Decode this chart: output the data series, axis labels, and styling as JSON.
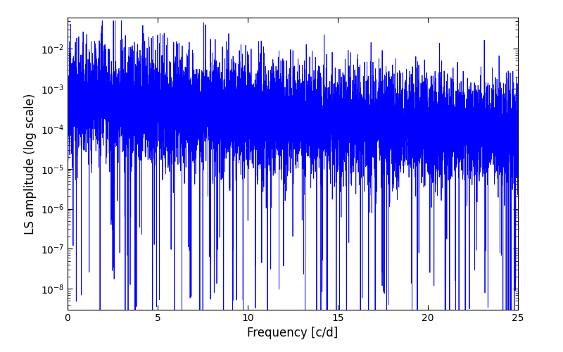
{
  "xlabel": "Frequency [c/d]",
  "ylabel": "LS amplitude (log scale)",
  "line_color": "#0000ff",
  "line_width": 0.6,
  "xlim": [
    0,
    25
  ],
  "ylim_low": 3e-09,
  "ylim_high": 0.06,
  "x_ticks": [
    0,
    5,
    10,
    15,
    20,
    25
  ],
  "freq_min": 0.0,
  "freq_max": 25.0,
  "n_points": 8000,
  "seed": 99
}
